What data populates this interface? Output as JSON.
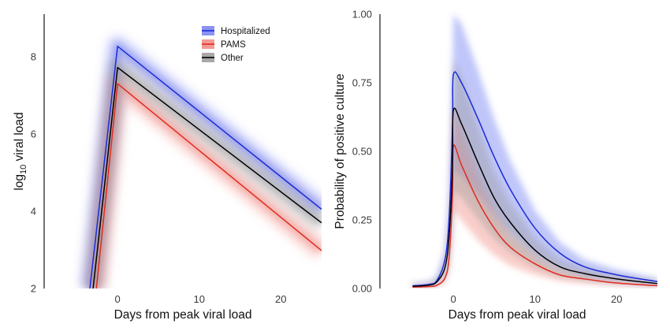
{
  "chart_data": [
    {
      "type": "line",
      "xlabel": "Days from peak viral load",
      "ylabel_main": "log",
      "ylabel_sub": "10",
      "ylabel_rest": " viral load",
      "xlim": [
        -9,
        25
      ],
      "ylim": [
        2,
        9.1
      ],
      "xticks": [
        0,
        10,
        20
      ],
      "yticks": [
        2,
        4,
        6,
        8
      ],
      "legend": {
        "position": "top-right",
        "entries": [
          "Hospitalized",
          "PAMS",
          "Other"
        ]
      },
      "series": [
        {
          "name": "Hospitalized",
          "color": "#1a2bd6",
          "band": "#6a76f0",
          "points": [
            [
              -3.4,
              2.0
            ],
            [
              0,
              8.27
            ],
            [
              25,
              4.05
            ]
          ]
        },
        {
          "name": "PAMS",
          "color": "#e02a1f",
          "band": "#f08a80",
          "points": [
            [
              -2.6,
              2.0
            ],
            [
              0,
              7.3
            ],
            [
              25,
              2.98
            ]
          ]
        },
        {
          "name": "Other",
          "color": "#000000",
          "band": "#9a9a9a",
          "points": [
            [
              -3.0,
              2.0
            ],
            [
              0,
              7.72
            ],
            [
              25,
              3.7
            ]
          ]
        }
      ]
    },
    {
      "type": "line",
      "xlabel": "Days from peak viral load",
      "ylabel": "Probability of positive culture",
      "xlim": [
        -9,
        25
      ],
      "ylim": [
        0,
        1
      ],
      "xticks": [
        0,
        10,
        20
      ],
      "yticks": [
        "0.00",
        "0.25",
        "0.50",
        "0.75",
        "1.00"
      ],
      "series": [
        {
          "name": "Hospitalized",
          "color": "#1a2bd6",
          "band": "#6a76f0",
          "x": [
            -5,
            -3,
            -2,
            -1,
            -0.5,
            -0.1,
            0,
            1,
            3,
            5,
            7,
            10,
            13,
            16,
            20,
            25
          ],
          "y": [
            0.01,
            0.015,
            0.03,
            0.11,
            0.27,
            0.6,
            0.78,
            0.75,
            0.62,
            0.48,
            0.36,
            0.22,
            0.13,
            0.08,
            0.05,
            0.025
          ]
        },
        {
          "name": "PAMS",
          "color": "#e02a1f",
          "band": "#f08a80",
          "x": [
            -5,
            -3,
            -2,
            -1,
            -0.5,
            -0.1,
            0,
            1,
            3,
            5,
            7,
            10,
            13,
            16,
            20,
            25
          ],
          "y": [
            0.005,
            0.007,
            0.012,
            0.04,
            0.12,
            0.35,
            0.52,
            0.45,
            0.32,
            0.22,
            0.15,
            0.09,
            0.05,
            0.035,
            0.02,
            0.01
          ]
        },
        {
          "name": "Other",
          "color": "#000000",
          "band": "#9a9a9a",
          "x": [
            -5,
            -3,
            -2,
            -1,
            -0.5,
            -0.1,
            0,
            1,
            3,
            5,
            7,
            10,
            13,
            16,
            20,
            25
          ],
          "y": [
            0.008,
            0.012,
            0.025,
            0.08,
            0.2,
            0.45,
            0.65,
            0.6,
            0.46,
            0.33,
            0.24,
            0.14,
            0.08,
            0.055,
            0.035,
            0.018
          ]
        }
      ]
    }
  ]
}
